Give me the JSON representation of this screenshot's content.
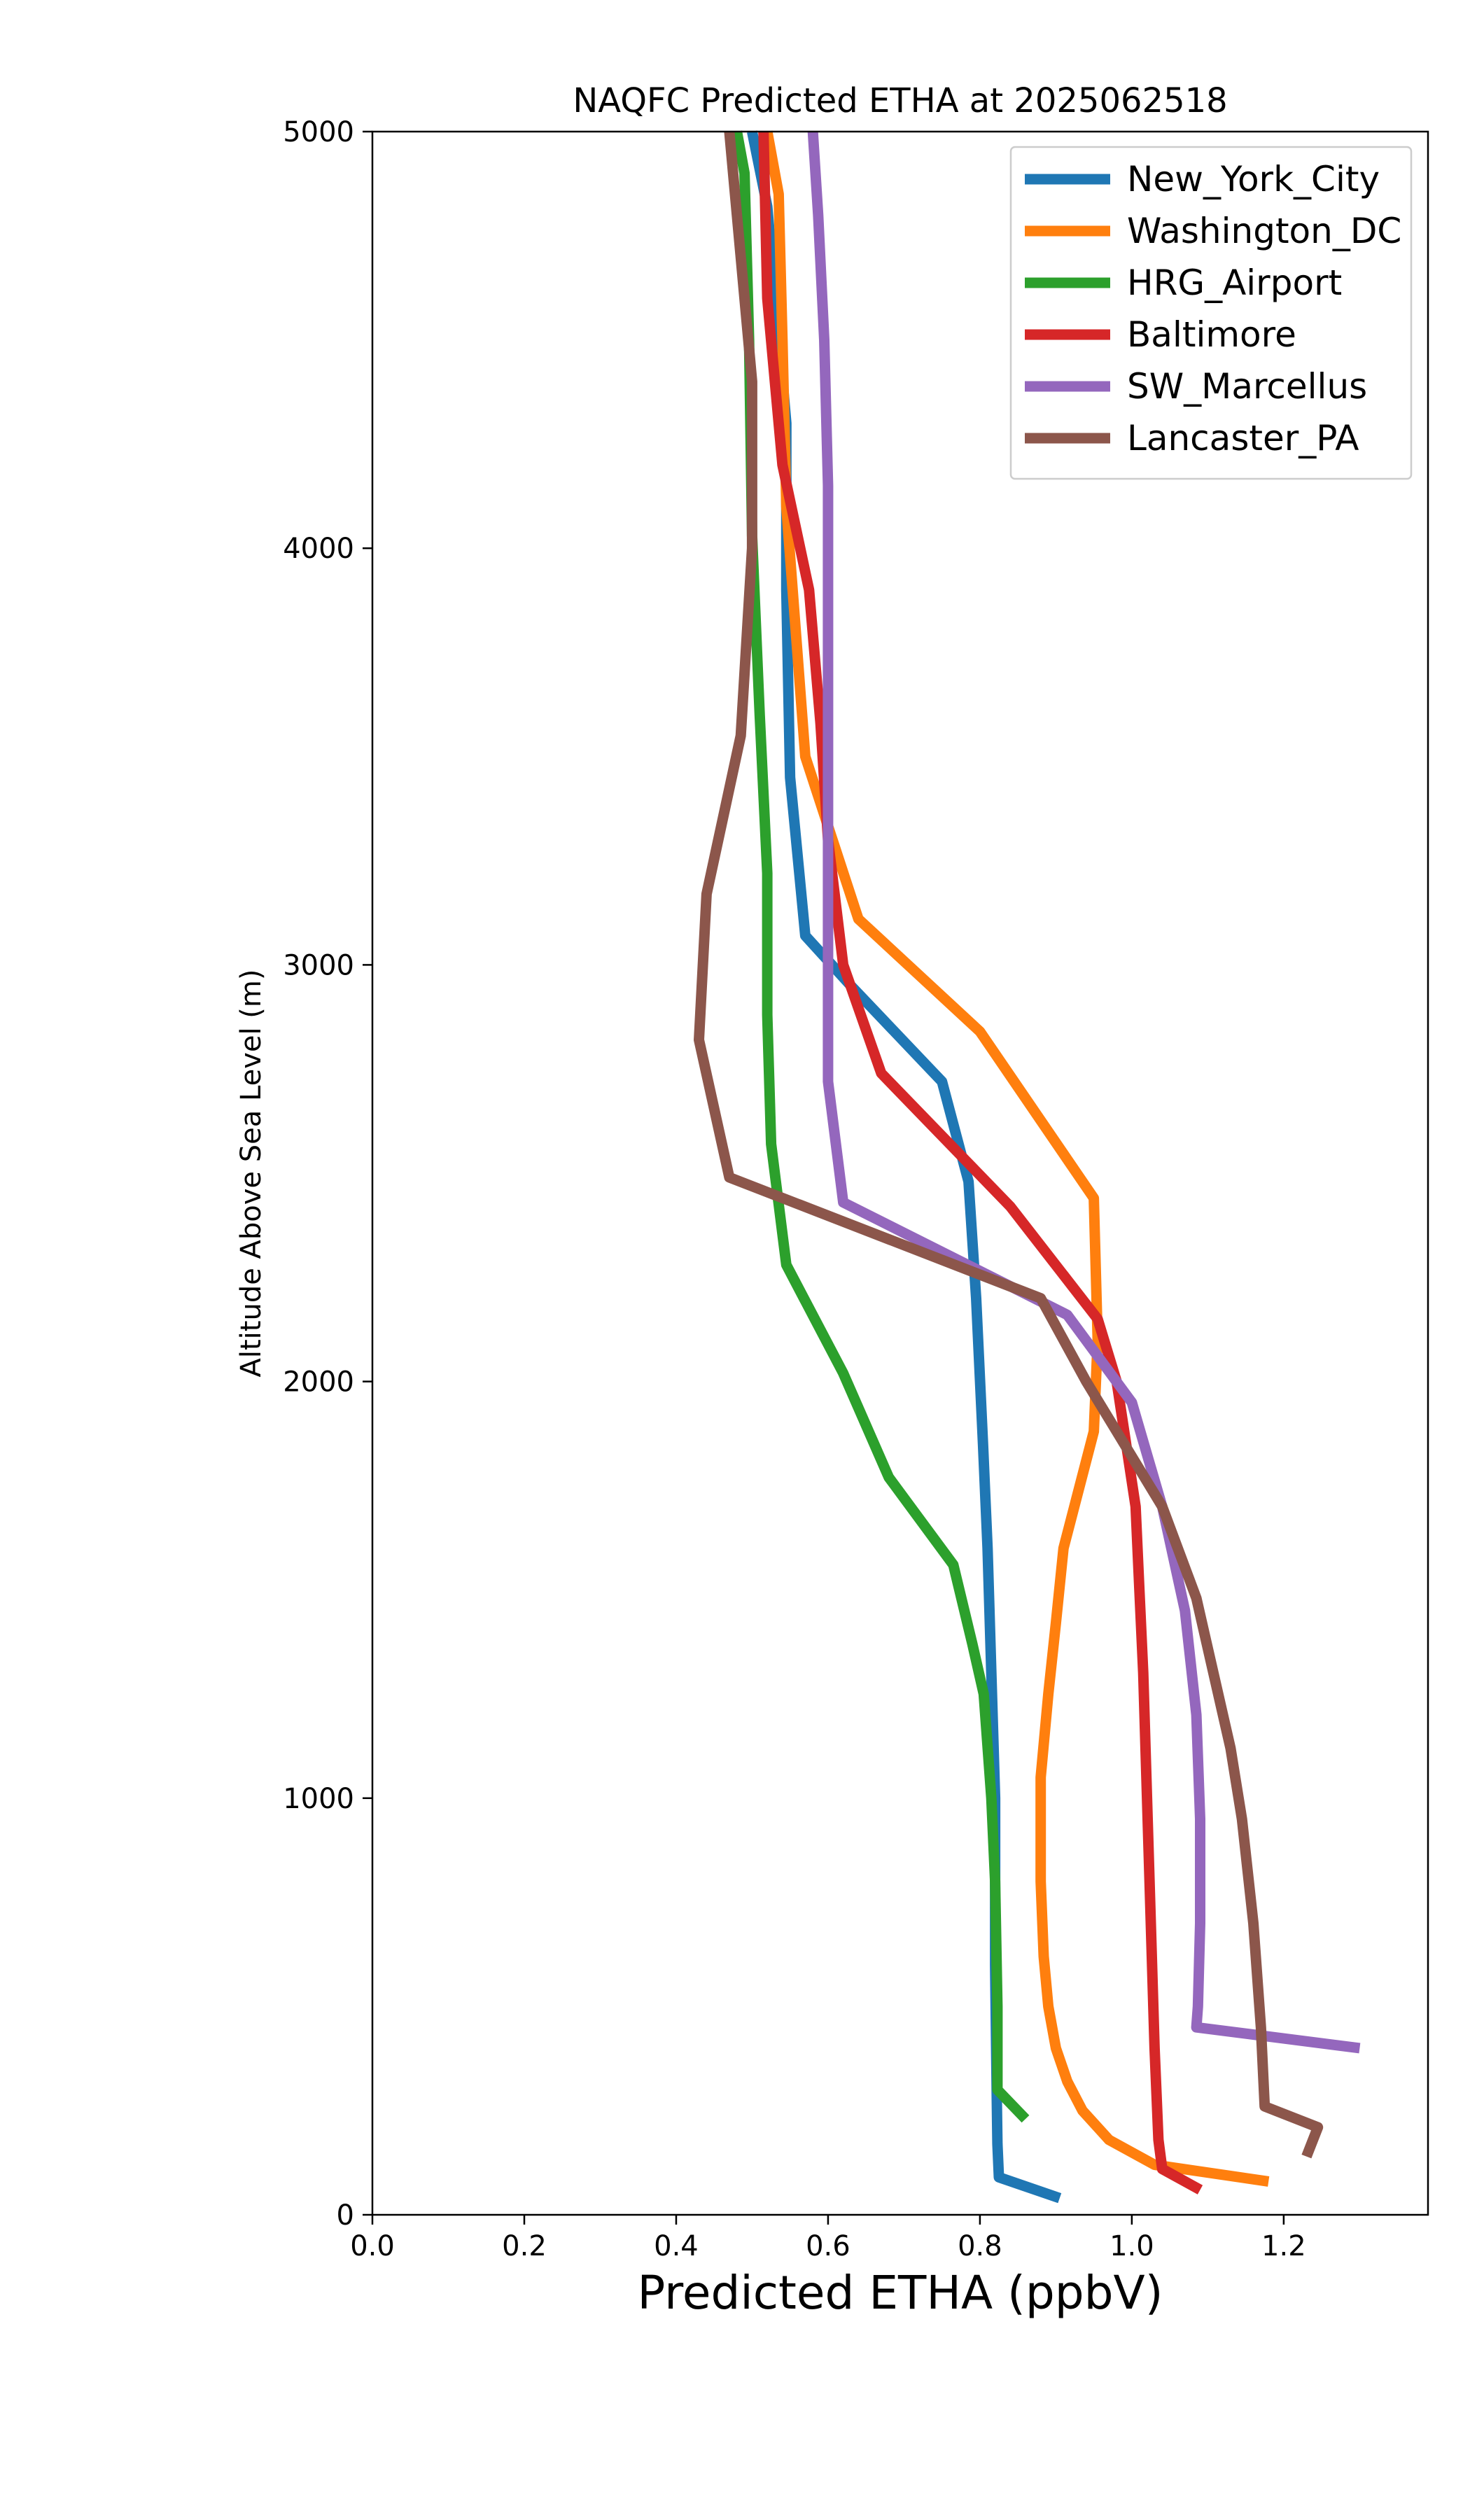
{
  "chart_data": {
    "type": "line",
    "title": "NAQFC Predicted ETHA at 2025062518",
    "xlabel": "Predicted ETHA (ppbV)",
    "ylabel": "Altitude Above Sea Level (m)",
    "xlim": [
      0.0,
      1.39
    ],
    "ylim": [
      0,
      5000
    ],
    "xticks": [
      "0.0",
      "0.2",
      "0.4",
      "0.6",
      "0.8",
      "1.0",
      "1.2"
    ],
    "yticks": [
      "0",
      "1000",
      "2000",
      "3000",
      "4000",
      "5000"
    ],
    "grid": false,
    "legend_position": "top-right",
    "series": [
      {
        "name": "New_York_City",
        "color": "#1f77b4",
        "points": [
          [
            0.905,
            40
          ],
          [
            0.825,
            90
          ],
          [
            0.823,
            170
          ],
          [
            0.822,
            300
          ],
          [
            0.82,
            600
          ],
          [
            0.82,
            1000
          ],
          [
            0.815,
            1300
          ],
          [
            0.81,
            1600
          ],
          [
            0.804,
            1850
          ],
          [
            0.795,
            2200
          ],
          [
            0.785,
            2480
          ],
          [
            0.75,
            2720
          ],
          [
            0.63,
            2950
          ],
          [
            0.57,
            3070
          ],
          [
            0.55,
            3450
          ],
          [
            0.545,
            3900
          ],
          [
            0.545,
            4300
          ],
          [
            0.52,
            4820
          ],
          [
            0.5,
            5000
          ]
        ]
      },
      {
        "name": "Washington_DC",
        "color": "#ff7f0e",
        "points": [
          [
            1.18,
            80
          ],
          [
            1.03,
            120
          ],
          [
            0.97,
            180
          ],
          [
            0.935,
            250
          ],
          [
            0.915,
            320
          ],
          [
            0.9,
            400
          ],
          [
            0.89,
            500
          ],
          [
            0.884,
            620
          ],
          [
            0.88,
            800
          ],
          [
            0.88,
            1050
          ],
          [
            0.89,
            1250
          ],
          [
            0.9,
            1420
          ],
          [
            0.91,
            1600
          ],
          [
            0.95,
            1880
          ],
          [
            0.955,
            2100
          ],
          [
            0.95,
            2440
          ],
          [
            0.8,
            2840
          ],
          [
            0.64,
            3110
          ],
          [
            0.57,
            3500
          ],
          [
            0.545,
            4100
          ],
          [
            0.54,
            4500
          ],
          [
            0.535,
            4850
          ],
          [
            0.52,
            5000
          ]
        ]
      },
      {
        "name": "HRG_Airport",
        "color": "#2ca02c",
        "points": [
          [
            0.86,
            230
          ],
          [
            0.823,
            300
          ],
          [
            0.823,
            500
          ],
          [
            0.82,
            800
          ],
          [
            0.815,
            1000
          ],
          [
            0.805,
            1250
          ],
          [
            0.79,
            1370
          ],
          [
            0.765,
            1560
          ],
          [
            0.68,
            1770
          ],
          [
            0.62,
            2020
          ],
          [
            0.545,
            2280
          ],
          [
            0.525,
            2570
          ],
          [
            0.52,
            2880
          ],
          [
            0.52,
            3220
          ],
          [
            0.51,
            3600
          ],
          [
            0.5,
            4030
          ],
          [
            0.496,
            4500
          ],
          [
            0.49,
            4900
          ],
          [
            0.48,
            5000
          ]
        ]
      },
      {
        "name": "Baltimore",
        "color": "#d62728",
        "points": [
          [
            1.09,
            60
          ],
          [
            1.04,
            110
          ],
          [
            1.035,
            180
          ],
          [
            1.03,
            400
          ],
          [
            1.025,
            700
          ],
          [
            1.02,
            1000
          ],
          [
            1.015,
            1300
          ],
          [
            1.01,
            1500
          ],
          [
            1.005,
            1700
          ],
          [
            0.98,
            2000
          ],
          [
            0.955,
            2150
          ],
          [
            0.84,
            2420
          ],
          [
            0.67,
            2740
          ],
          [
            0.62,
            3000
          ],
          [
            0.6,
            3300
          ],
          [
            0.59,
            3580
          ],
          [
            0.575,
            3900
          ],
          [
            0.54,
            4200
          ],
          [
            0.52,
            4600
          ],
          [
            0.515,
            5000
          ]
        ]
      },
      {
        "name": "SW_Marcellus",
        "color": "#9467bd",
        "points": [
          [
            1.3,
            400
          ],
          [
            1.085,
            450
          ],
          [
            1.087,
            500
          ],
          [
            1.09,
            700
          ],
          [
            1.09,
            950
          ],
          [
            1.085,
            1200
          ],
          [
            1.07,
            1450
          ],
          [
            1.04,
            1700
          ],
          [
            1.0,
            1950
          ],
          [
            0.915,
            2160
          ],
          [
            0.62,
            2430
          ],
          [
            0.6,
            2720
          ],
          [
            0.6,
            3000
          ],
          [
            0.6,
            3500
          ],
          [
            0.6,
            3800
          ],
          [
            0.6,
            4150
          ],
          [
            0.595,
            4500
          ],
          [
            0.587,
            4800
          ],
          [
            0.58,
            5000
          ]
        ]
      },
      {
        "name": "Lancaster_PA",
        "color": "#8c564b",
        "points": [
          [
            1.23,
            140
          ],
          [
            1.245,
            210
          ],
          [
            1.175,
            260
          ],
          [
            1.17,
            450
          ],
          [
            1.16,
            700
          ],
          [
            1.145,
            950
          ],
          [
            1.13,
            1120
          ],
          [
            1.11,
            1280
          ],
          [
            1.085,
            1480
          ],
          [
            1.04,
            1700
          ],
          [
            0.98,
            1880
          ],
          [
            0.94,
            2000
          ],
          [
            0.88,
            2200
          ],
          [
            0.47,
            2490
          ],
          [
            0.43,
            2820
          ],
          [
            0.44,
            3170
          ],
          [
            0.485,
            3550
          ],
          [
            0.5,
            4000
          ],
          [
            0.5,
            4400
          ],
          [
            0.48,
            4800
          ],
          [
            0.47,
            5000
          ]
        ]
      }
    ]
  }
}
